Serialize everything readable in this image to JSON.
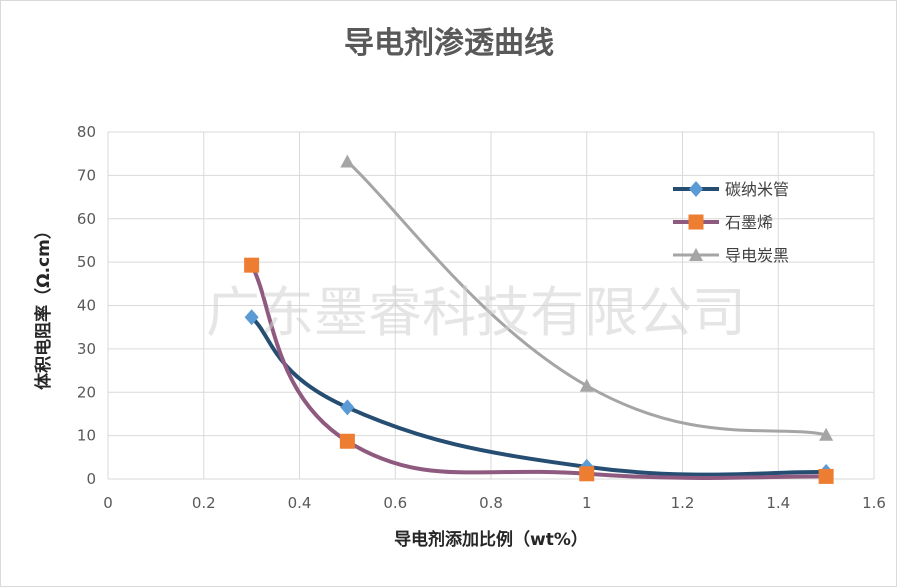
{
  "chart_data": {
    "type": "line",
    "title": "导电剂渗透曲线",
    "xlabel": "导电剂添加比例（wt%）",
    "ylabel": "体积电阻率（Ω.cm）",
    "xlim": [
      0,
      1.6
    ],
    "ylim": [
      0,
      80
    ],
    "x_ticks": [
      "0",
      "0.2",
      "0.4",
      "0.6",
      "0.8",
      "1",
      "1.2",
      "1.4",
      "1.6"
    ],
    "y_ticks": [
      "0",
      "10",
      "20",
      "30",
      "40",
      "50",
      "60",
      "70",
      "80"
    ],
    "grid": true,
    "legend_position": "right",
    "smooth": true,
    "series": [
      {
        "name": "碳纳米管",
        "marker": "diamond",
        "color": "#264e73",
        "marker_color": "#5b9bd5",
        "points": [
          [
            0.3,
            37.3
          ],
          [
            0.5,
            16.5
          ],
          [
            1.0,
            2.8
          ],
          [
            1.5,
            1.6
          ]
        ]
      },
      {
        "name": "石墨烯",
        "marker": "square",
        "color": "#8e5a7f",
        "marker_color": "#ed7d31",
        "points": [
          [
            0.3,
            49.3
          ],
          [
            0.5,
            8.7
          ],
          [
            1.0,
            1.2
          ],
          [
            1.5,
            0.6
          ]
        ]
      },
      {
        "name": "导电炭黑",
        "marker": "triangle",
        "color": "#a5a5a5",
        "marker_color": "#a5a5a5",
        "points": [
          [
            0.5,
            73.2
          ],
          [
            1.0,
            21.5
          ],
          [
            1.5,
            10.2
          ]
        ]
      }
    ],
    "watermark": "广东墨睿科技有限公司"
  }
}
